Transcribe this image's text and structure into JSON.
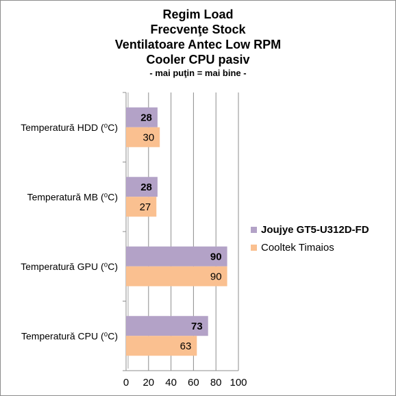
{
  "chart_data": {
    "type": "bar",
    "orientation": "horizontal",
    "title_lines": [
      "Regim Load",
      "Frecvenţe Stock",
      "Ventilatoare Antec Low RPM",
      "Cooler CPU pasiv"
    ],
    "subtitle": "- mai puţin = mai bine -",
    "categories": [
      "Temperatură HDD (⁰C)",
      "Temperatură MB (⁰C)",
      "Temperatură GPU (⁰C)",
      "Temperatură CPU (⁰C)"
    ],
    "series": [
      {
        "name": "Joujye GT5-U312D-FD",
        "values": [
          28,
          28,
          90,
          73
        ],
        "color": "#b3a2c7",
        "label_bold": true
      },
      {
        "name": "Cooltek Timaios",
        "values": [
          30,
          27,
          90,
          63
        ],
        "color": "#fac090",
        "label_bold": false
      }
    ],
    "xlim": [
      0,
      100
    ],
    "x_ticks": [
      0,
      20,
      40,
      60,
      80,
      100
    ],
    "grid": true,
    "legend_position": "right"
  }
}
